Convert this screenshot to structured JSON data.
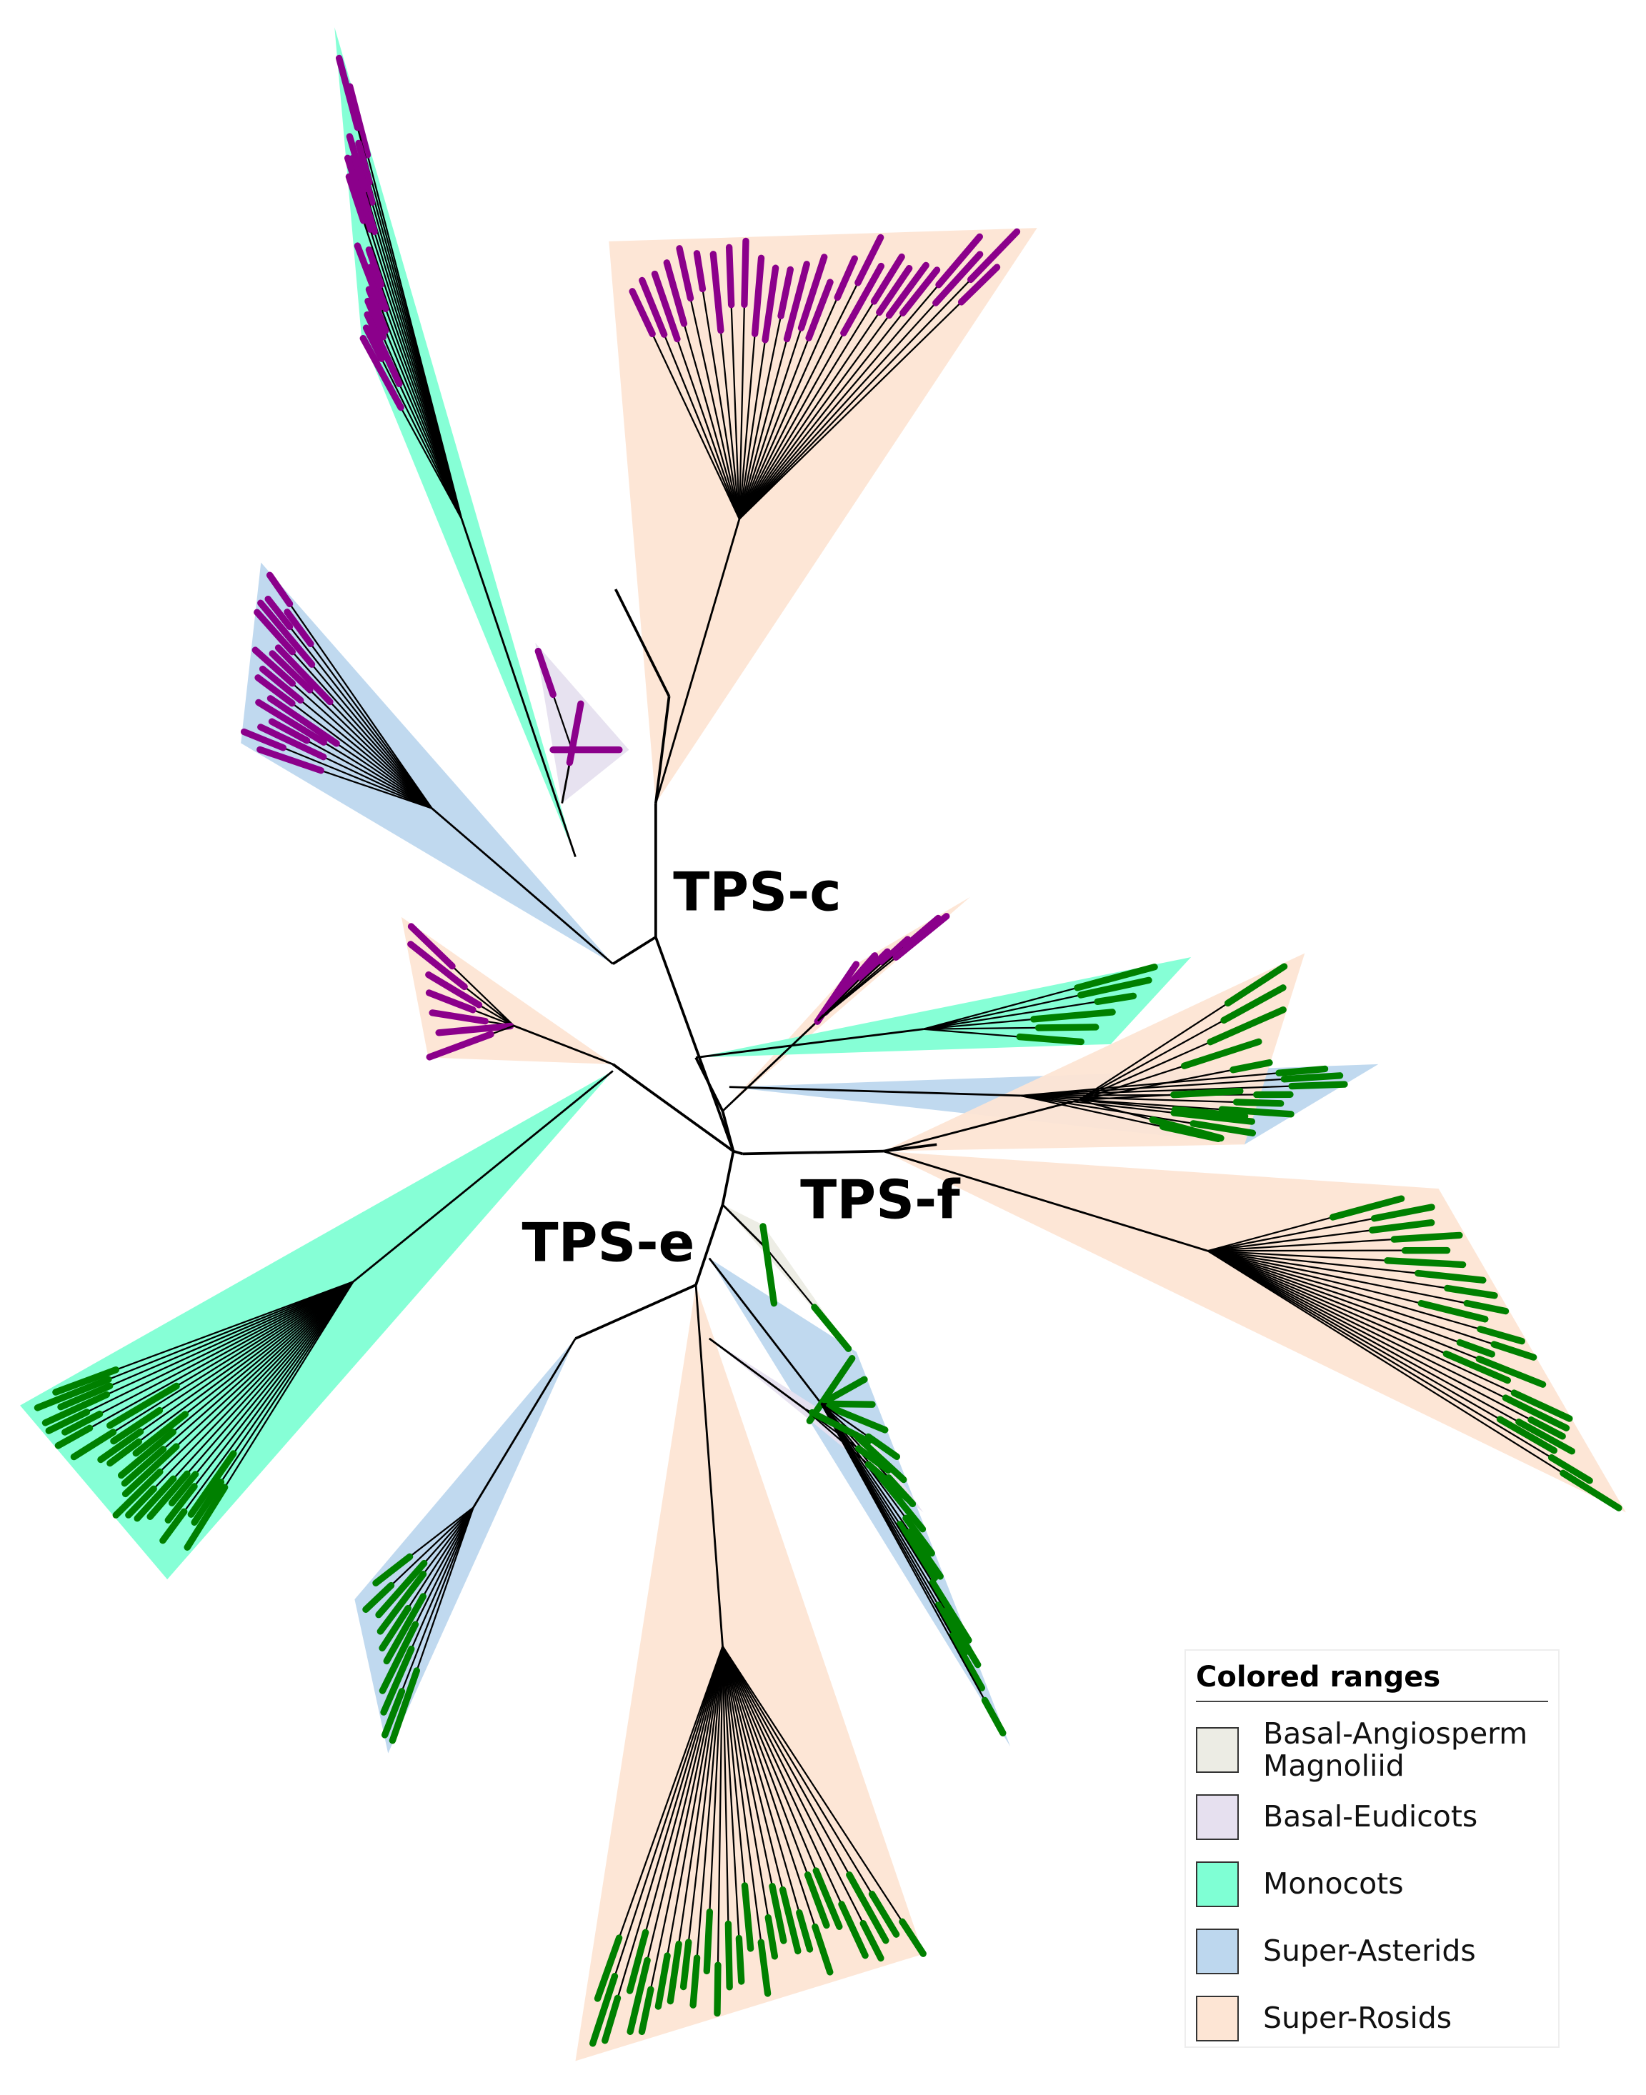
{
  "clades": [
    {
      "label": "TPS-c"
    },
    {
      "label": "TPS-e"
    },
    {
      "label": "TPS-f"
    }
  ],
  "legend": {
    "title": "Colored ranges",
    "items": [
      {
        "label": "Basal-Angiosperm Magnoliid",
        "color": "#ecece4"
      },
      {
        "label": "Basal-Eudicots",
        "color": "#e6e0ef"
      },
      {
        "label": "Monocots",
        "color": "#7fffd4"
      },
      {
        "label": "Super-Asterids",
        "color": "#bdd7ee"
      },
      {
        "label": "Super-Rosids",
        "color": "#fde5d4"
      }
    ]
  }
}
